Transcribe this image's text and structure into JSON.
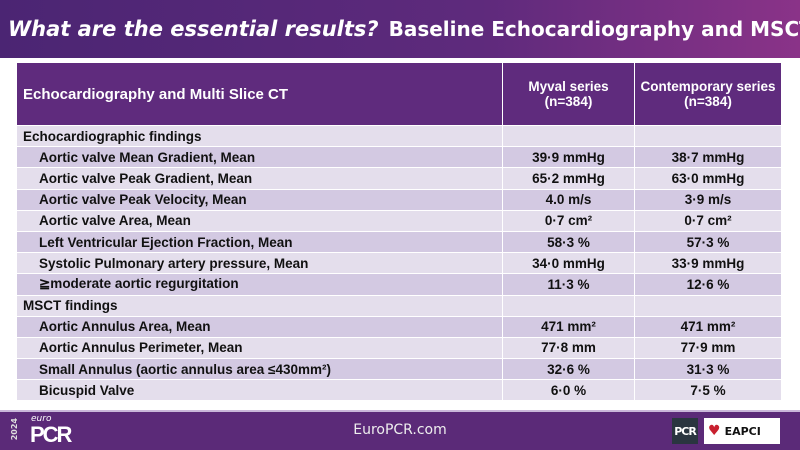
{
  "header": {
    "question": "What are the essential results?",
    "subtitle": "Baseline Echocardiography and MSCT"
  },
  "table": {
    "columns": [
      "Echocardiography and Multi Slice CT",
      "Myval series\n(n=384)",
      "Contemporary series\n(n=384)"
    ],
    "col1": {
      "line1": "Myval series",
      "line2": "(n=384)"
    },
    "col2": {
      "line1": "Contemporary series",
      "line2": "(n=384)"
    },
    "rows": [
      {
        "label": "Echocardiographic findings",
        "section": true,
        "myval": "",
        "contemporary": ""
      },
      {
        "label": "Aortic valve Mean Gradient, Mean",
        "myval": "39·9 mmHg",
        "contemporary": "38·7 mmHg"
      },
      {
        "label": "Aortic valve Peak Gradient, Mean",
        "myval": "65·2 mmHg",
        "contemporary": "63·0 mmHg"
      },
      {
        "label": "Aortic valve Peak Velocity, Mean",
        "myval": "4.0 m/s",
        "contemporary": "3·9 m/s"
      },
      {
        "label": "Aortic valve Area, Mean",
        "myval": "0·7 cm²",
        "contemporary": "0·7 cm²"
      },
      {
        "label": "Left Ventricular Ejection Fraction, Mean",
        "myval": "58·3 %",
        "contemporary": "57·3 %"
      },
      {
        "label": "Systolic Pulmonary artery pressure, Mean",
        "myval": "34·0 mmHg",
        "contemporary": "33·9 mmHg"
      },
      {
        "label": "≧moderate aortic regurgitation",
        "myval": "11·3 %",
        "contemporary": "12·6 %"
      },
      {
        "label": "MSCT findings",
        "section": true,
        "myval": "",
        "contemporary": ""
      },
      {
        "label": "Aortic Annulus Area, Mean",
        "myval": "471 mm²",
        "contemporary": "471 mm²"
      },
      {
        "label": "Aortic Annulus Perimeter, Mean",
        "myval": "77·8 mm",
        "contemporary": "77·9 mm"
      },
      {
        "label": "Small Annulus (aortic annulus area ≤430mm²)",
        "myval": "32·6 %",
        "contemporary": "31·3 %"
      },
      {
        "label": "Bicuspid Valve",
        "myval": "6·0 %",
        "contemporary": "7·5 %"
      }
    ]
  },
  "footer": {
    "url": "EuroPCR.com",
    "logo_year": "2024",
    "logo_euro": "euro",
    "logo_pcr": "PCR",
    "pcr_badge": "PCR",
    "eapci": "EAPCI"
  }
}
